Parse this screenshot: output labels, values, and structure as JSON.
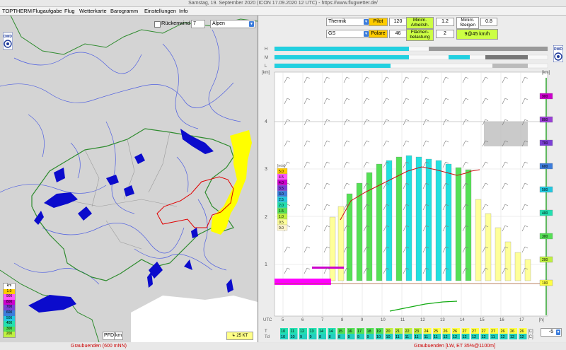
{
  "window": {
    "title": "Samstag, 19. September 2020 (ICON 17.09.2020 12 UTC) - https://www.flugwetter.de/"
  },
  "menu": [
    "TOPTHERM",
    "Flugaufgabe",
    "Flug",
    "Wetterkarte",
    "Barogramm",
    "Einstellungen",
    "Info"
  ],
  "left": {
    "rueckenwind_label": "Rückenwind",
    "level_value": "7",
    "region_value": "Alpen",
    "legend_unit": "km",
    "legend_values": [
      "1.0",
      "900",
      "800",
      "700",
      "600",
      "500",
      "400",
      "300",
      "200"
    ],
    "pfd_label": "PFD",
    "km_label": "km",
    "wind_label": "25 KT",
    "status": "Graubuenden (600 mNN)"
  },
  "right": {
    "mode_value": "Thermik",
    "glider_value": "GS",
    "pilot_label": "Pilot",
    "pilot_value": "120",
    "polare_label": "Polare",
    "polare_value": "46",
    "min_arbeit_label": "Minim. Arbeitsh.",
    "min_arbeit_value": "1.2",
    "flaechen_label": "Flächen-belastung",
    "flaechen_value": "2",
    "min_steigen_label": "Minim. Steigen",
    "min_steigen_value": "0.8",
    "speed_result": "9@45 km/h",
    "band_labels": [
      "H",
      "M",
      "L"
    ],
    "km_axis_label": "[km]",
    "km_axis": [
      "1",
      "2",
      "3",
      "4"
    ],
    "ms_label": "[m/s]",
    "ms_legend": [
      "5.0",
      "4.5",
      "4.0",
      "3.5",
      "3.0",
      "2.5",
      "2.0",
      "1.5",
      "1.0",
      "0.5",
      "0.0"
    ],
    "utc_label": "UTC",
    "hour_unit": "[h]",
    "hours": [
      "5",
      "6",
      "7",
      "8",
      "9",
      "10",
      "11",
      "12",
      "13",
      "14",
      "15",
      "16",
      "17"
    ],
    "right_scale_unit": "[km]",
    "right_scale": [
      "900",
      "800",
      "700",
      "600",
      "500",
      "400",
      "300",
      "200",
      "100"
    ],
    "t_label": "T",
    "td_label": "Td",
    "temp_unit": "[C]",
    "t_values": [
      "10",
      "11",
      "12",
      "13",
      "14",
      "14",
      "15",
      "16",
      "17",
      "18",
      "19",
      "20",
      "21",
      "22",
      "23",
      "24",
      "25",
      "26",
      "26",
      "27",
      "27",
      "27",
      "27",
      "26",
      "26",
      "26"
    ],
    "td_values": [
      "10",
      "10",
      "9",
      "9",
      "8",
      "8",
      "8",
      "9",
      "9",
      "9",
      "10",
      "10",
      "11",
      "11",
      "11",
      "11",
      "11",
      "12",
      "12",
      "12",
      "12",
      "12",
      "11",
      "12",
      "12",
      "12"
    ],
    "zoom_value": "-5",
    "status": "Graubuenden [LW, ET  35%@1100m]"
  },
  "colors": {
    "accent": "#3c7ddc",
    "lake": "#0b0bcc",
    "border_green": "#2e8b2e",
    "region_yellow": "#ffff00",
    "region_red": "#e00000",
    "thermal_cyan": "#22e0e0",
    "thermal_green": "#55e055",
    "thermal_yellow": "#ffff99",
    "magenta": "#ff00ff"
  }
}
